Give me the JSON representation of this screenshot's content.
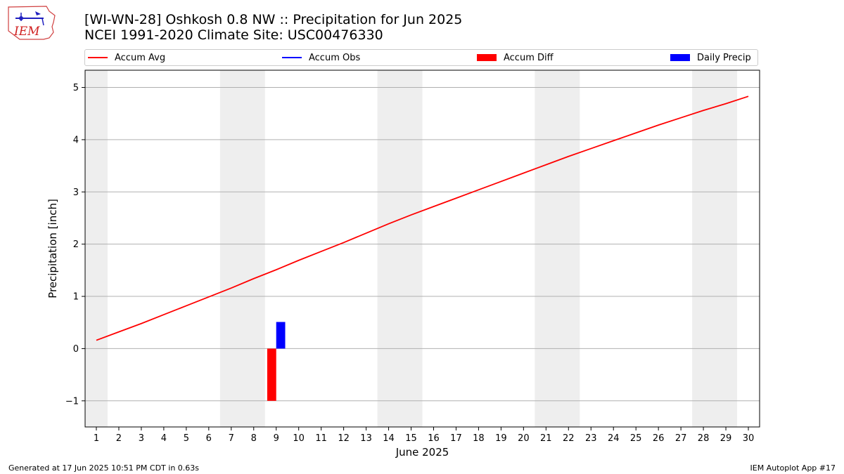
{
  "header": {
    "logo_text": "IEM",
    "title_line1": "[WI-WN-28] Oshkosh 0.8 NW :: Precipitation for Jun 2025",
    "title_line2": "NCEI 1991-2020 Climate Site: USC00476330"
  },
  "legend": {
    "items": [
      {
        "label": "Accum Avg",
        "kind": "line",
        "color": "#ff0000"
      },
      {
        "label": "Accum Obs",
        "kind": "line",
        "color": "#0000ff"
      },
      {
        "label": "Accum Diff",
        "kind": "box",
        "color": "#ff0000"
      },
      {
        "label": "Daily Precip",
        "kind": "box",
        "color": "#0000ff"
      }
    ]
  },
  "footer": {
    "left": "Generated at 17 Jun 2025 10:51 PM CDT in 0.63s",
    "right": "IEM Autoplot App #17"
  },
  "chart_data": {
    "type": "line",
    "xlabel": "June 2025",
    "ylabel": "Precipitation [inch]",
    "xlim": [
      0.5,
      30.5
    ],
    "ylim": [
      -1.5,
      5.33
    ],
    "x_ticks": [
      1,
      2,
      3,
      4,
      5,
      6,
      7,
      8,
      9,
      10,
      11,
      12,
      13,
      14,
      15,
      16,
      17,
      18,
      19,
      20,
      21,
      22,
      23,
      24,
      25,
      26,
      27,
      28,
      29,
      30
    ],
    "y_ticks": [
      -1,
      0,
      1,
      2,
      3,
      4,
      5
    ],
    "y_tick_labels": [
      "−1",
      "0",
      "1",
      "2",
      "3",
      "4",
      "5"
    ],
    "grid": "horizontal",
    "weekend_shading": [
      [
        0.5,
        1.5
      ],
      [
        6.5,
        8.5
      ],
      [
        13.5,
        15.5
      ],
      [
        20.5,
        22.5
      ],
      [
        27.5,
        29.5
      ]
    ],
    "series": [
      {
        "name": "Accum Avg",
        "type": "line",
        "color": "#ff0000",
        "x": [
          1,
          2,
          3,
          4,
          5,
          6,
          7,
          8,
          9,
          10,
          11,
          12,
          13,
          14,
          15,
          16,
          17,
          18,
          19,
          20,
          21,
          22,
          23,
          24,
          25,
          26,
          27,
          28,
          29,
          30
        ],
        "values": [
          0.16,
          0.32,
          0.48,
          0.65,
          0.82,
          0.99,
          1.16,
          1.34,
          1.51,
          1.69,
          1.86,
          2.03,
          2.21,
          2.39,
          2.56,
          2.72,
          2.88,
          3.04,
          3.2,
          3.36,
          3.52,
          3.68,
          3.83,
          3.98,
          4.13,
          4.28,
          4.42,
          4.56,
          4.69,
          4.83
        ]
      },
      {
        "name": "Accum Diff",
        "type": "bar",
        "color": "#ff0000",
        "x": [
          8.8
        ],
        "values": [
          -1.0
        ]
      },
      {
        "name": "Daily Precip",
        "type": "bar",
        "color": "#0000ff",
        "x": [
          9.2
        ],
        "values": [
          0.51
        ]
      }
    ]
  }
}
